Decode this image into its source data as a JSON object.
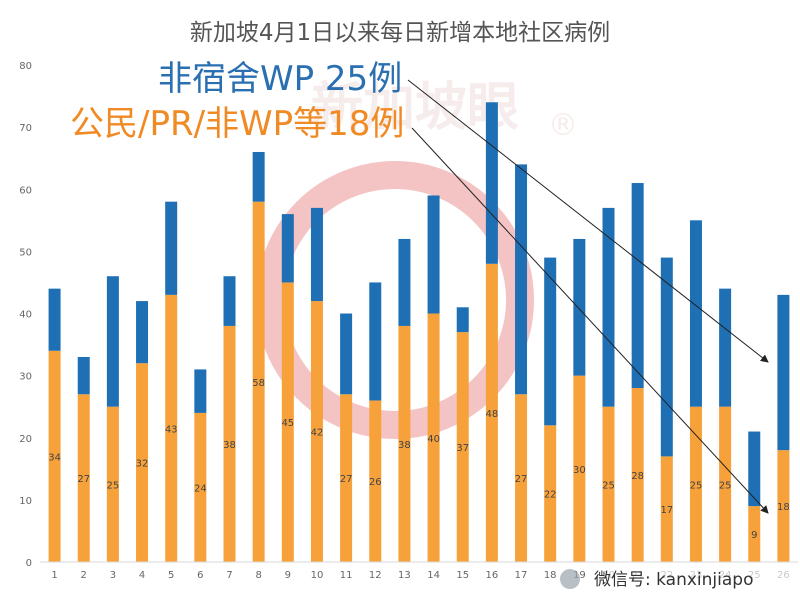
{
  "chart_data": {
    "type": "bar",
    "stacked": true,
    "title": "新加坡4月1日以来每日新增本地社区病例",
    "categories": [
      "1",
      "2",
      "3",
      "4",
      "5",
      "6",
      "7",
      "8",
      "9",
      "10",
      "11",
      "12",
      "13",
      "14",
      "15",
      "16",
      "17",
      "18",
      "19",
      "20",
      "21",
      "22",
      "23",
      "24",
      "25",
      "26"
    ],
    "series": [
      {
        "key": "bottom",
        "values": [
          34,
          27,
          25,
          32,
          43,
          24,
          38,
          58,
          45,
          42,
          27,
          26,
          38,
          40,
          37,
          48,
          27,
          22,
          30,
          25,
          28,
          17,
          25,
          25,
          9,
          18
        ],
        "color": "#f7a13b"
      },
      {
        "key": "top",
        "values": [
          10,
          6,
          21,
          10,
          15,
          7,
          8,
          8,
          11,
          15,
          13,
          19,
          14,
          19,
          4,
          26,
          37,
          27,
          22,
          32,
          33,
          32,
          30,
          19,
          12,
          25
        ],
        "color": "#1f6fb5"
      }
    ],
    "ylim": [
      0,
      80
    ],
    "yticks": [
      0,
      10,
      20,
      30,
      40,
      50,
      60,
      70,
      80
    ],
    "grid": false,
    "legend": "none",
    "annotations": {
      "non_dorm_wp": "非宿舍WP 25例",
      "citizens_pr": "公民/PR/非WP等18例"
    }
  },
  "watermark": {
    "text": "新加坡眼",
    "registered": "®",
    "color": "#e05555"
  },
  "footer": {
    "text": "微信号: kanxinjiapo"
  }
}
